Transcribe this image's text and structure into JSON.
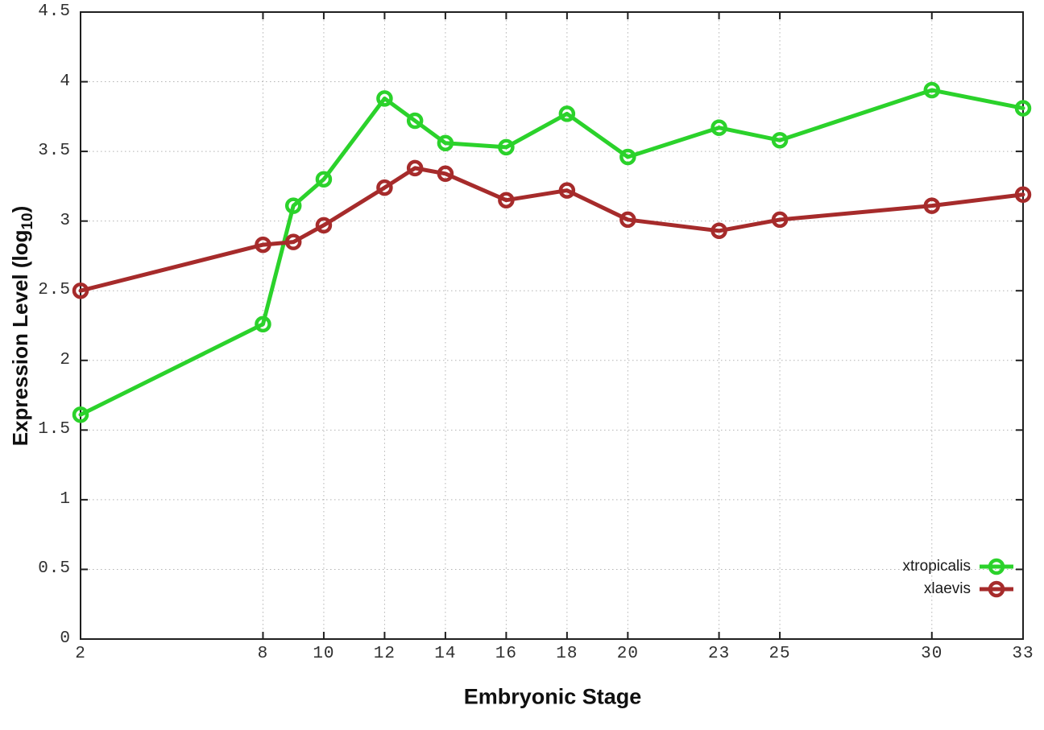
{
  "figure": {
    "xlabel": "Embryonic Stage",
    "ylabel_prefix": "Expression Level (log",
    "ylabel_subscript": "10",
    "ylabel_suffix": ")"
  },
  "chart_data": {
    "type": "line",
    "title": "",
    "xlabel": "Embryonic Stage",
    "ylabel": "Expression Level (log10)",
    "x": [
      2,
      8,
      9,
      10,
      12,
      13,
      14,
      16,
      18,
      20,
      23,
      25,
      30,
      33
    ],
    "series": [
      {
        "name": "xtropicalis",
        "color": "#2BD22B",
        "values": [
          1.61,
          2.26,
          3.11,
          3.3,
          3.88,
          3.72,
          3.56,
          3.53,
          3.77,
          3.46,
          3.67,
          3.58,
          3.94,
          3.81
        ]
      },
      {
        "name": "xlaevis",
        "color": "#A62B2B",
        "values": [
          2.5,
          2.83,
          2.85,
          2.97,
          3.24,
          3.38,
          3.34,
          3.15,
          3.22,
          3.01,
          2.93,
          3.01,
          3.11,
          3.19
        ]
      }
    ],
    "x_ticks": [
      2,
      8,
      10,
      12,
      14,
      16,
      18,
      20,
      23,
      25,
      30,
      33
    ],
    "y_ticks": [
      0,
      0.5,
      1,
      1.5,
      2,
      2.5,
      3,
      3.5,
      4,
      4.5
    ],
    "xlim": [
      2,
      33
    ],
    "ylim": [
      0,
      4.5
    ],
    "grid": true,
    "marker": "open-circle",
    "legend_position": "inside-bottom-right",
    "colors": {
      "grid": "#b3b3b3",
      "axis": "#1f1f1f",
      "tick_text": "#303030",
      "label_text": "#101010"
    }
  }
}
